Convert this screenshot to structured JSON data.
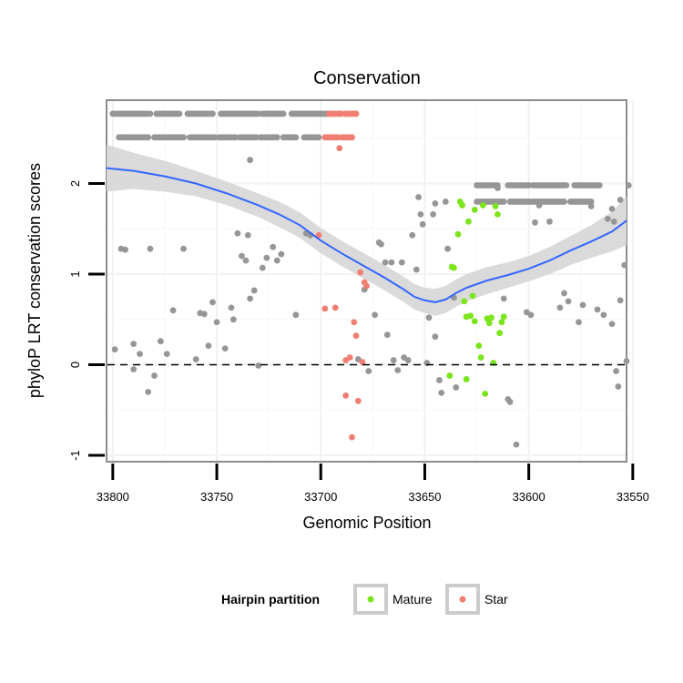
{
  "chart_data": {
    "type": "scatter",
    "title": "Conservation",
    "xlabel": "Genomic Position",
    "ylabel": "phyloP LRT conservation scores",
    "xlim": [
      33803,
      33553
    ],
    "ylim": [
      -1.07,
      2.92
    ],
    "x_ticks": [
      33800,
      33750,
      33700,
      33650,
      33600,
      33550
    ],
    "x_tick_labels": [
      "33800",
      "33750",
      "33700",
      "33650",
      "33600",
      "33550"
    ],
    "y_ticks": [
      -1,
      0,
      1,
      2
    ],
    "y_tick_labels": [
      "-1",
      "0",
      "1",
      "2"
    ],
    "reference_line": 0,
    "legend": {
      "title": "Hairpin partition",
      "position": "bottom",
      "entries": [
        {
          "label": "Mature",
          "color": "#7ae51a"
        },
        {
          "label": "Star",
          "color": "#f07e72"
        }
      ]
    },
    "colors": {
      "other": "#969696",
      "mature": "#7ae51a",
      "star": "#f07e72",
      "smooth": "#3366ff",
      "band": "#d6d6d6"
    },
    "top_rows": {
      "y_upper": 2.77,
      "y_lower": 2.51,
      "upper_ranges": [
        [
          33800,
          33782
        ],
        [
          33779,
          33768
        ],
        [
          33764,
          33752
        ],
        [
          33748,
          33730
        ],
        [
          33728,
          33718
        ],
        [
          33714,
          33704
        ],
        [
          33703,
          33697
        ]
      ],
      "lower_ranges": [
        [
          33797,
          33783
        ],
        [
          33780,
          33766
        ],
        [
          33763,
          33751
        ],
        [
          33749,
          33741
        ],
        [
          33739,
          33731
        ],
        [
          33729,
          33721
        ],
        [
          33718,
          33712
        ],
        [
          33708,
          33701
        ]
      ],
      "star_upper_range": [
        33696,
        33690
      ],
      "star_lower_range": [
        33698,
        33692
      ],
      "star_upper_range2": [
        33688,
        33683
      ],
      "star_lower_range2": [
        33690,
        33685
      ],
      "right_upper_ranges": [
        [
          33625,
          33615
        ],
        [
          33610,
          33600
        ],
        [
          33598,
          33582
        ],
        [
          33578,
          33566
        ]
      ],
      "right_lower_ranges": [
        [
          33625,
          33612
        ],
        [
          33609,
          33597
        ],
        [
          33596,
          33583
        ],
        [
          33580,
          33570
        ]
      ]
    },
    "series": [
      {
        "name": "Other",
        "points": [
          [
            33799,
            0.17
          ],
          [
            33796,
            1.28
          ],
          [
            33794,
            1.27
          ],
          [
            33790,
            0.23
          ],
          [
            33787,
            0.12
          ],
          [
            33782,
            1.28
          ],
          [
            33783,
            -0.3
          ],
          [
            33780,
            -0.12
          ],
          [
            33777,
            0.26
          ],
          [
            33774,
            0.12
          ],
          [
            33771,
            0.6
          ],
          [
            33766,
            1.28
          ],
          [
            33790,
            -0.05
          ],
          [
            33760,
            0.06
          ],
          [
            33758,
            0.57
          ],
          [
            33756,
            0.56
          ],
          [
            33754,
            0.21
          ],
          [
            33752,
            0.69
          ],
          [
            33750,
            0.47
          ],
          [
            33746,
            0.18
          ],
          [
            33743,
            0.63
          ],
          [
            33740,
            1.45
          ],
          [
            33738,
            1.2
          ],
          [
            33736,
            1.15
          ],
          [
            33734,
            0.73
          ],
          [
            33732,
            0.82
          ],
          [
            33730,
            -0.01
          ],
          [
            33728,
            1.07
          ],
          [
            33726,
            1.18
          ],
          [
            33723,
            1.3
          ],
          [
            33721,
            1.15
          ],
          [
            33719,
            1.22
          ],
          [
            33734,
            2.26
          ],
          [
            33742,
            0.5
          ],
          [
            33735,
            1.43
          ],
          [
            33712,
            0.55
          ],
          [
            33707,
            1.45
          ],
          [
            33705,
            1.43
          ],
          [
            33682,
            0.06
          ],
          [
            33679,
            0.83
          ],
          [
            33677,
            -0.07
          ],
          [
            33674,
            0.55
          ],
          [
            33672,
            1.35
          ],
          [
            33671,
            1.33
          ],
          [
            33669,
            1.13
          ],
          [
            33668,
            0.33
          ],
          [
            33666,
            1.13
          ],
          [
            33665,
            0.05
          ],
          [
            33663,
            -0.06
          ],
          [
            33661,
            1.13
          ],
          [
            33660,
            0.08
          ],
          [
            33658,
            0.05
          ],
          [
            33656,
            1.43
          ],
          [
            33654,
            1.05
          ],
          [
            33653,
            1.85
          ],
          [
            33652,
            1.66
          ],
          [
            33651,
            1.55
          ],
          [
            33649,
            0.02
          ],
          [
            33648,
            0.52
          ],
          [
            33646,
            1.66
          ],
          [
            33645,
            1.78
          ],
          [
            33643,
            -0.17
          ],
          [
            33642,
            -0.31
          ],
          [
            33640,
            1.8
          ],
          [
            33639,
            1.28
          ],
          [
            33636,
            0.74
          ],
          [
            33635,
            -0.25
          ],
          [
            33645,
            0.31
          ],
          [
            33615,
            1.95
          ],
          [
            33612,
            0.73
          ],
          [
            33610,
            -0.38
          ],
          [
            33609,
            -0.41
          ],
          [
            33606,
            -0.88
          ],
          [
            33601,
            0.58
          ],
          [
            33599,
            0.55
          ],
          [
            33597,
            1.57
          ],
          [
            33595,
            1.76
          ],
          [
            33590,
            1.58
          ],
          [
            33585,
            0.63
          ],
          [
            33583,
            0.79
          ],
          [
            33581,
            0.7
          ],
          [
            33576,
            0.47
          ],
          [
            33574,
            0.66
          ],
          [
            33570,
            1.75
          ],
          [
            33567,
            0.61
          ],
          [
            33564,
            0.55
          ],
          [
            33560,
            0.45
          ],
          [
            33558,
            -0.07
          ],
          [
            33557,
            -0.24
          ],
          [
            33556,
            0.71
          ],
          [
            33554,
            1.1
          ],
          [
            33553,
            0.04
          ],
          [
            33552,
            1.98
          ],
          [
            33562,
            1.61
          ],
          [
            33559,
            1.58
          ],
          [
            33560,
            1.72
          ],
          [
            33556,
            1.82
          ]
        ]
      },
      {
        "name": "Mature",
        "points": [
          [
            33638,
            -0.12
          ],
          [
            33637,
            1.08
          ],
          [
            33636,
            1.07
          ],
          [
            33634,
            1.44
          ],
          [
            33633,
            1.8
          ],
          [
            33632,
            1.76
          ],
          [
            33631,
            0.7
          ],
          [
            33630,
            0.53
          ],
          [
            33629,
            1.58
          ],
          [
            33628,
            0.54
          ],
          [
            33627,
            0.76
          ],
          [
            33626,
            1.71
          ],
          [
            33624,
            0.21
          ],
          [
            33623,
            0.08
          ],
          [
            33622,
            1.76
          ],
          [
            33621,
            -0.32
          ],
          [
            33620,
            0.51
          ],
          [
            33619,
            0.46
          ],
          [
            33618,
            0.52
          ],
          [
            33617,
            0.02
          ],
          [
            33616,
            1.75
          ],
          [
            33615,
            1.66
          ],
          [
            33614,
            0.35
          ],
          [
            33613,
            0.47
          ],
          [
            33612,
            0.53
          ],
          [
            33630,
            -0.16
          ],
          [
            33626,
            0.48
          ]
        ]
      },
      {
        "name": "Star",
        "points": [
          [
            33701,
            1.43
          ],
          [
            33698,
            0.62
          ],
          [
            33693,
            0.63
          ],
          [
            33691,
            2.39
          ],
          [
            33688,
            -0.34
          ],
          [
            33686,
            0.08
          ],
          [
            33685,
            -0.8
          ],
          [
            33684,
            0.47
          ],
          [
            33683,
            0.32
          ],
          [
            33682,
            -0.4
          ],
          [
            33681,
            1.02
          ],
          [
            33680,
            0.03
          ],
          [
            33679,
            0.91
          ],
          [
            33678,
            0.87
          ],
          [
            33688,
            0.05
          ]
        ]
      }
    ],
    "smooth_curve": {
      "x": [
        33803,
        33790,
        33775,
        33760,
        33745,
        33730,
        33720,
        33710,
        33700,
        33690,
        33680,
        33670,
        33660,
        33655,
        33650,
        33645,
        33640,
        33635,
        33630,
        33620,
        33610,
        33600,
        33590,
        33580,
        33570,
        33560,
        33553
      ],
      "y": [
        2.17,
        2.14,
        2.08,
        2.0,
        1.89,
        1.76,
        1.66,
        1.54,
        1.37,
        1.23,
        1.1,
        0.97,
        0.83,
        0.75,
        0.71,
        0.69,
        0.72,
        0.79,
        0.85,
        0.93,
        0.99,
        1.06,
        1.15,
        1.26,
        1.36,
        1.47,
        1.59
      ],
      "band_half_width": [
        0.26,
        0.2,
        0.17,
        0.14,
        0.13,
        0.13,
        0.14,
        0.14,
        0.14,
        0.14,
        0.14,
        0.14,
        0.14,
        0.14,
        0.14,
        0.15,
        0.15,
        0.15,
        0.15,
        0.15,
        0.14,
        0.14,
        0.15,
        0.16,
        0.18,
        0.22,
        0.27
      ]
    }
  }
}
